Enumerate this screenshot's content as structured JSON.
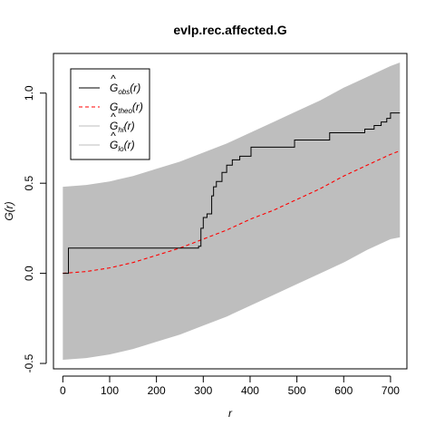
{
  "chart_data": {
    "type": "line",
    "title": "evlp.rec.affected.G",
    "xlabel": "r",
    "ylabel": "G(r)",
    "xlim": [
      -20,
      735
    ],
    "ylim": [
      -0.53,
      1.22
    ],
    "x_ticks": [
      0,
      100,
      200,
      300,
      400,
      500,
      600,
      700
    ],
    "y_ticks": [
      -0.5,
      0.0,
      0.5,
      1.0
    ],
    "x_tick_labels": [
      "0",
      "100",
      "200",
      "300",
      "400",
      "500",
      "600",
      "700"
    ],
    "y_tick_labels": [
      "-0.5",
      "0.0",
      "0.5",
      "1.0"
    ],
    "grid": false,
    "legend_position": "top-left",
    "legend": [
      {
        "symbol": "G",
        "hat": "^",
        "sub": "obs",
        "suffix": "(r)",
        "color": "#000000",
        "dash": "solid"
      },
      {
        "symbol": "G",
        "hat": "",
        "sub": "theo",
        "suffix": "(r)",
        "color": "#ff0000",
        "dash": "dashed"
      },
      {
        "symbol": "G",
        "hat": "^",
        "sub": "hi",
        "suffix": "(r)",
        "color": "#bebebe",
        "dash": "solid"
      },
      {
        "symbol": "G",
        "hat": "^",
        "sub": "lo",
        "suffix": "(r)",
        "color": "#bebebe",
        "dash": "solid"
      }
    ],
    "series": [
      {
        "name": "obs",
        "step": true,
        "color": "#000000",
        "x": [
          0,
          12,
          290,
          295,
          300,
          308,
          318,
          322,
          328,
          340,
          350,
          362,
          378,
          402,
          495,
          570,
          645,
          665,
          680,
          692,
          700,
          720
        ],
        "y": [
          0.0,
          0.14,
          0.15,
          0.25,
          0.31,
          0.33,
          0.43,
          0.48,
          0.51,
          0.56,
          0.6,
          0.63,
          0.65,
          0.7,
          0.74,
          0.78,
          0.8,
          0.82,
          0.84,
          0.86,
          0.89,
          0.89
        ]
      },
      {
        "name": "theo",
        "color": "#ff0000",
        "x": [
          0,
          50,
          100,
          150,
          200,
          250,
          300,
          350,
          400,
          450,
          500,
          550,
          600,
          650,
          700,
          720
        ],
        "y": [
          0.0,
          0.01,
          0.03,
          0.06,
          0.1,
          0.14,
          0.19,
          0.24,
          0.3,
          0.35,
          0.41,
          0.47,
          0.54,
          0.6,
          0.66,
          0.68
        ]
      },
      {
        "name": "hi",
        "color": "#bebebe",
        "x": [
          0,
          50,
          100,
          150,
          200,
          250,
          300,
          350,
          400,
          450,
          500,
          550,
          600,
          650,
          700,
          720
        ],
        "y": [
          0.48,
          0.49,
          0.51,
          0.54,
          0.58,
          0.62,
          0.67,
          0.72,
          0.78,
          0.84,
          0.9,
          0.96,
          1.03,
          1.09,
          1.15,
          1.17
        ]
      },
      {
        "name": "lo",
        "color": "#bebebe",
        "x": [
          0,
          50,
          100,
          150,
          200,
          250,
          300,
          350,
          400,
          450,
          500,
          550,
          600,
          650,
          700,
          720
        ],
        "y": [
          -0.48,
          -0.47,
          -0.45,
          -0.42,
          -0.38,
          -0.34,
          -0.29,
          -0.24,
          -0.18,
          -0.12,
          -0.06,
          0.0,
          0.06,
          0.13,
          0.19,
          0.2
        ]
      }
    ]
  }
}
